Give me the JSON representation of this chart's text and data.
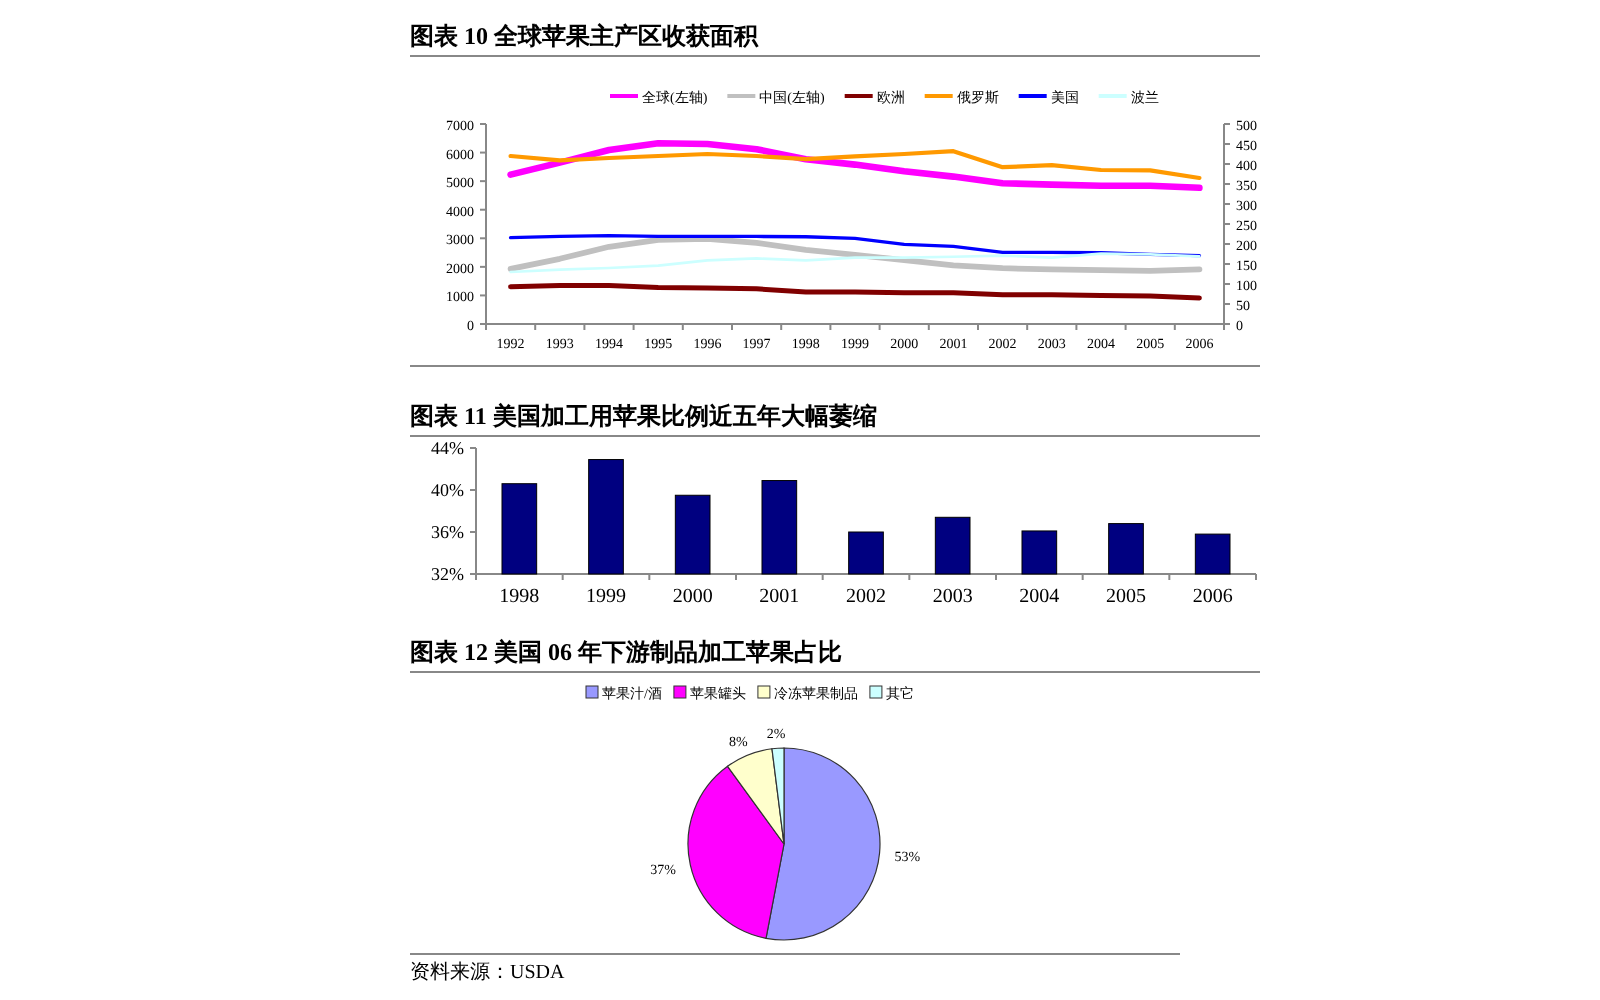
{
  "chart_data": [
    {
      "type": "line",
      "title": "图表 10 全球苹果主产区收获面积",
      "categories": [
        "1992",
        "1993",
        "1994",
        "1995",
        "1996",
        "1997",
        "1998",
        "1999",
        "2000",
        "2001",
        "2002",
        "2003",
        "2004",
        "2005",
        "2006"
      ],
      "series": [
        {
          "name": "全球(左轴)",
          "color": "#ff00ff",
          "values": [
            5230,
            5650,
            6090,
            6330,
            6300,
            6120,
            5770,
            5580,
            5350,
            5160,
            4930,
            4880,
            4840,
            4840,
            4770
          ]
        },
        {
          "name": "中国(左轴)",
          "color": "#c0c0c0",
          "values": [
            1930,
            2280,
            2700,
            2950,
            2980,
            2840,
            2600,
            2420,
            2230,
            2050,
            1950,
            1910,
            1880,
            1860,
            1910
          ]
        },
        {
          "name": "欧洲",
          "color": "#800000",
          "axis": "y2",
          "values": [
            93,
            96,
            96,
            91,
            90,
            88,
            80,
            80,
            78,
            78,
            73,
            73,
            71,
            70,
            65
          ]
        },
        {
          "name": "俄罗斯",
          "color": "#ff9900",
          "axis": "y2",
          "values": [
            420,
            409,
            415,
            420,
            425,
            420,
            412,
            419,
            425,
            432,
            392,
            397,
            385,
            384,
            365
          ]
        },
        {
          "name": "美国",
          "color": "#0000ff",
          "axis": "y2",
          "values": [
            216,
            219,
            221,
            219,
            219,
            219,
            218,
            214,
            199,
            194,
            179,
            179,
            178,
            174,
            171
          ]
        },
        {
          "name": "波兰",
          "color": "#ccffff",
          "axis": "y2",
          "values": [
            130,
            136,
            140,
            146,
            159,
            164,
            159,
            166,
            166,
            168,
            171,
            166,
            176,
            174,
            169
          ]
        }
      ],
      "ylim": [
        0,
        7000
      ],
      "yticks": [
        0,
        1000,
        2000,
        3000,
        4000,
        5000,
        6000,
        7000
      ],
      "y2lim": [
        0,
        500
      ],
      "y2ticks": [
        0,
        50,
        100,
        150,
        200,
        250,
        300,
        350,
        400,
        450,
        500
      ],
      "legend": "top"
    },
    {
      "type": "bar",
      "title": "图表 11 美国加工用苹果比例近五年大幅萎缩",
      "categories": [
        "1998",
        "1999",
        "2000",
        "2001",
        "2002",
        "2003",
        "2004",
        "2005",
        "2006"
      ],
      "values": [
        40.6,
        42.9,
        39.5,
        40.9,
        36.0,
        37.4,
        36.1,
        36.8,
        35.8
      ],
      "color": "#000080",
      "ylim": [
        32,
        44
      ],
      "yticks": [
        {
          "value": 32,
          "label": "32%"
        },
        {
          "value": 36,
          "label": "36%"
        },
        {
          "value": 40,
          "label": "40%"
        },
        {
          "value": 44,
          "label": "44%"
        }
      ]
    },
    {
      "type": "pie",
      "title": "图表 12 美国 06 年下游制品加工苹果占比",
      "categories": [
        "苹果汁/酒",
        "苹果罐头",
        "冷冻苹果制品",
        "其它"
      ],
      "values": [
        53,
        37,
        8,
        2
      ],
      "colors": [
        "#9999ff",
        "#ff00ff",
        "#ffffcc",
        "#ccffff"
      ],
      "value_labels": [
        "53%",
        "37%",
        "8%",
        "2%"
      ],
      "legend": "top",
      "annotations": [
        "资料来源：USDA"
      ]
    }
  ]
}
